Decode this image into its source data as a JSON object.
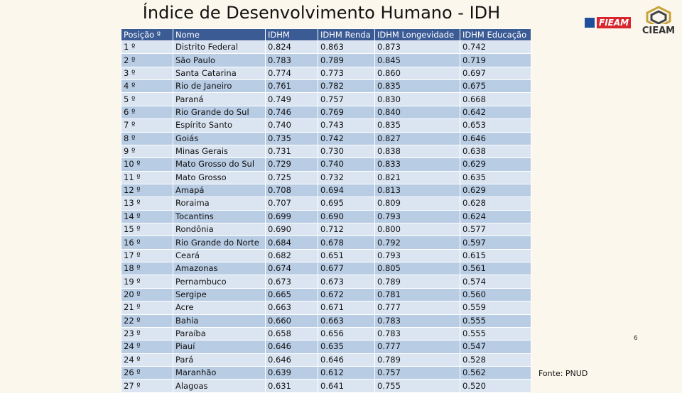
{
  "title": "Índice de Desenvolvimento Humano - IDH",
  "logos": {
    "fieam": "FIEAM",
    "cieam": "CIEAM"
  },
  "page_number": "6",
  "source": "Fonte: PNUD",
  "table": {
    "header": [
      "Posição º",
      "Nome",
      "IDHM",
      "IDHM Renda",
      "IDHM Longevidade",
      "IDHM Educação"
    ],
    "rows": [
      [
        "1 º",
        "Distrito Federal",
        "0.824",
        "0.863",
        "0.873",
        "0.742"
      ],
      [
        "2 º",
        "São Paulo",
        "0.783",
        "0.789",
        "0.845",
        "0.719"
      ],
      [
        "3 º",
        "Santa Catarina",
        "0.774",
        "0.773",
        "0.860",
        "0.697"
      ],
      [
        "4 º",
        "Rio de Janeiro",
        "0.761",
        "0.782",
        "0.835",
        "0.675"
      ],
      [
        "5 º",
        "Paraná",
        "0.749",
        "0.757",
        "0.830",
        "0.668"
      ],
      [
        "6 º",
        "Rio Grande do Sul",
        "0.746",
        "0.769",
        "0.840",
        "0.642"
      ],
      [
        "7 º",
        "Espírito Santo",
        "0.740",
        "0.743",
        "0.835",
        "0.653"
      ],
      [
        "8 º",
        "Goiás",
        "0.735",
        "0.742",
        "0.827",
        "0.646"
      ],
      [
        "9 º",
        "Minas Gerais",
        "0.731",
        "0.730",
        "0.838",
        "0.638"
      ],
      [
        "10 º",
        "Mato Grosso do Sul",
        "0.729",
        "0.740",
        "0.833",
        "0.629"
      ],
      [
        "11 º",
        "Mato Grosso",
        "0.725",
        "0.732",
        "0.821",
        "0.635"
      ],
      [
        "12 º",
        "Amapá",
        "0.708",
        "0.694",
        "0.813",
        "0.629"
      ],
      [
        "13 º",
        "Roraima",
        "0.707",
        "0.695",
        "0.809",
        "0.628"
      ],
      [
        "14 º",
        "Tocantins",
        "0.699",
        "0.690",
        "0.793",
        "0.624"
      ],
      [
        "15 º",
        "Rondônia",
        "0.690",
        "0.712",
        "0.800",
        "0.577"
      ],
      [
        "16 º",
        "Rio Grande do Norte",
        "0.684",
        "0.678",
        "0.792",
        "0.597"
      ],
      [
        "17 º",
        "Ceará",
        "0.682",
        "0.651",
        "0.793",
        "0.615"
      ],
      [
        "18 º",
        "Amazonas",
        "0.674",
        "0.677",
        "0.805",
        "0.561"
      ],
      [
        "19 º",
        "Pernambuco",
        "0.673",
        "0.673",
        "0.789",
        "0.574"
      ],
      [
        "20 º",
        "Sergipe",
        "0.665",
        "0.672",
        "0.781",
        "0.560"
      ],
      [
        "21 º",
        "Acre",
        "0.663",
        "0.671",
        "0.777",
        "0.559"
      ],
      [
        "22 º",
        "Bahia",
        "0.660",
        "0.663",
        "0.783",
        "0.555"
      ],
      [
        "23 º",
        "Paraíba",
        "0.658",
        "0.656",
        "0.783",
        "0.555"
      ],
      [
        "24 º",
        "Piauí",
        "0.646",
        "0.635",
        "0.777",
        "0.547"
      ],
      [
        "24 º",
        "Pará",
        "0.646",
        "0.646",
        "0.789",
        "0.528"
      ],
      [
        "26 º",
        "Maranhão",
        "0.639",
        "0.612",
        "0.757",
        "0.562"
      ],
      [
        "27 º",
        "Alagoas",
        "0.631",
        "0.641",
        "0.755",
        "0.520"
      ]
    ]
  }
}
